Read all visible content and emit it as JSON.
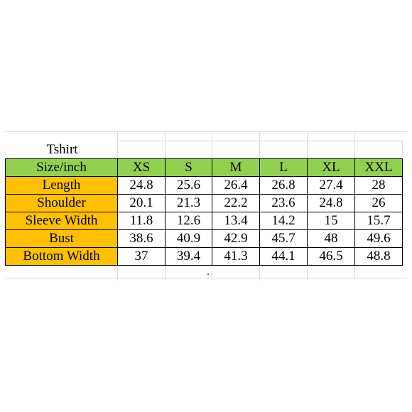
{
  "sheet": {
    "title": "Tshirt",
    "header": [
      "Size/inch",
      "XS",
      "S",
      "M",
      "L",
      "XL",
      "XXL"
    ],
    "rows": [
      {
        "label": "Length",
        "values": [
          "24.8",
          "25.6",
          "26.4",
          "26.8",
          "27.4",
          "28"
        ]
      },
      {
        "label": "Shoulder",
        "values": [
          "20.1",
          "21.3",
          "22.2",
          "23.6",
          "24.8",
          "26"
        ]
      },
      {
        "label": "Sleeve Width",
        "values": [
          "11.8",
          "12.6",
          "13.4",
          "14.2",
          "15",
          "15.7"
        ]
      },
      {
        "label": "Bust",
        "values": [
          "38.6",
          "40.9",
          "42.9",
          "45.7",
          "48",
          "49.6"
        ]
      },
      {
        "label": "Bottom Width",
        "values": [
          "37",
          "39.4",
          "41.3",
          "44.1",
          "46.5",
          "48.8"
        ]
      }
    ]
  },
  "colors": {
    "header_fill": "#92d050",
    "row_label_fill": "#ffc000",
    "gridline": "#d9d9d9"
  }
}
